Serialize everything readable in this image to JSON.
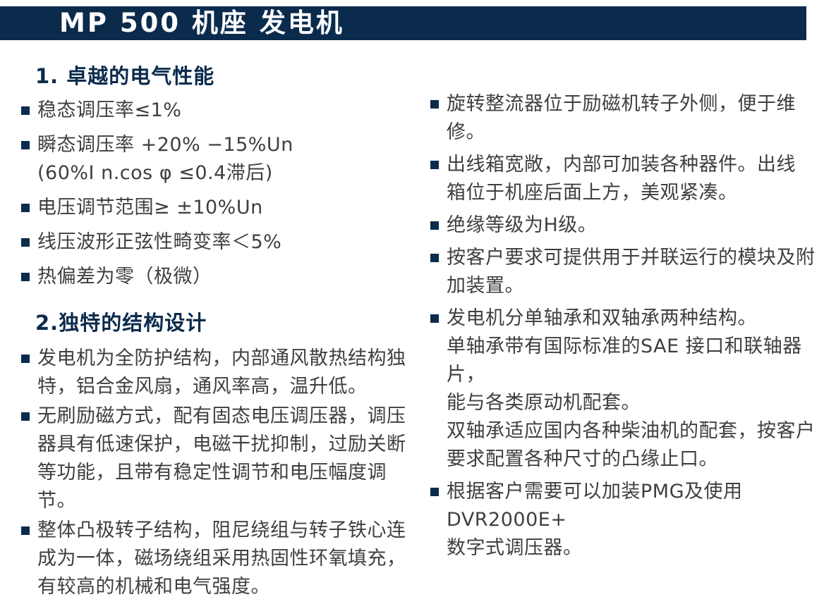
{
  "header": {
    "title": "MP 500 机座 发电机",
    "bg_color": "#0b2b4d",
    "text_color": "#ffffff"
  },
  "colors": {
    "accent": "#0b2b4d",
    "body_text": "#3f3f3f",
    "page_bg": "#ffffff"
  },
  "left": {
    "s1_title": "1. 卓越的电气性能",
    "s1_items": [
      "稳态调压率≤1%",
      "瞬态调压率 +20% −15%Un\n(60%I n.cos φ ≤0.4滞后)",
      "电压调节范围≥ ±10%Un",
      "线压波形正弦性畸变率＜5%",
      "热偏差为零（极微）"
    ],
    "s2_title": "2.独特的结构设计",
    "s2_items": [
      "发电机为全防护结构，内部通风散热结构独\n特，铝合金风扇，通风率高，温升低。",
      "无刷励磁方式，配有固态电压调压器，调压\n器具有低速保护，电磁干扰抑制，过励关断\n等功能，且带有稳定性调节和电压幅度调节。",
      "整体凸极转子结构，阻尼绕组与转子铁心连\n成为一体，磁场绕组采用热固性环氧填充，\n有较高的机械和电气强度。"
    ]
  },
  "right": {
    "items": [
      "旋转整流器位于励磁机转子外侧，便于维修。",
      "出线箱宽敞，内部可加装各种器件。出线\n箱位于机座后面上方，美观紧凑。",
      "绝缘等级为H级。",
      "按客户要求可提供用于并联运行的模块及附\n加装置。",
      "发电机分单轴承和双轴承两种结构。\n单轴承带有国际标准的SAE 接口和联轴器片，\n能与各类原动机配套。\n双轴承适应国内各种柴油机的配套，按客户\n要求配置各种尺寸的凸缘止口。",
      "根据客户需要可以加装PMG及使用DVR2000E+\n数字式调压器。"
    ]
  }
}
